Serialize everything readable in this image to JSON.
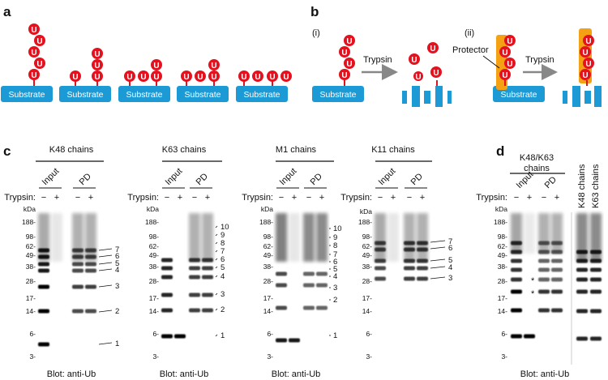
{
  "panel_labels": {
    "a": "a",
    "b": "b",
    "c": "c",
    "d": "d"
  },
  "ub_label": "U",
  "substrate_label": "Substrate",
  "panel_b": {
    "sub_i": "(i)",
    "sub_ii": "(ii)",
    "trypsin_label": "Trypsin",
    "protector_label": "Protector"
  },
  "colors": {
    "ubiquitin": "#e3121e",
    "substrate": "#1c9ad6",
    "protector": "#f5a114",
    "arrow": "#888888",
    "band": "#000000"
  },
  "blots": [
    {
      "title": "K48 chains",
      "trypsin_label": "Trypsin:",
      "input": "Input",
      "pd": "PD",
      "minus": "−",
      "plus": "+",
      "mw_unit": "kDa",
      "mw": [
        "188-",
        "98-",
        "62-",
        "49-",
        "38-",
        "28-",
        "17-",
        "14-",
        "6-",
        "3-"
      ],
      "chain_lengths": [
        "7",
        "6",
        "5",
        "4",
        "3",
        "2",
        "1"
      ],
      "footer": "Blot: anti-Ub"
    },
    {
      "title": "K63 chains",
      "trypsin_label": "Trypsin:",
      "input": "Input",
      "pd": "PD",
      "minus": "−",
      "plus": "+",
      "mw_unit": "kDa",
      "mw": [
        "188-",
        "98-",
        "62-",
        "49-",
        "38-",
        "28-",
        "17-",
        "14-",
        "6-",
        "3-"
      ],
      "chain_lengths": [
        "10",
        "9",
        "8",
        "7",
        "6",
        "5",
        "4",
        "3",
        "2",
        "1"
      ],
      "footer": "Blot: anti-Ub"
    },
    {
      "title": "M1 chains",
      "trypsin_label": "Trypsin:",
      "input": "Input",
      "pd": "PD",
      "minus": "−",
      "plus": "+",
      "mw_unit": "kDa",
      "mw": [
        "188-",
        "98-",
        "62-",
        "49-",
        "38-",
        "28-",
        "17-",
        "14-",
        "6-",
        "3-"
      ],
      "chain_lengths": [
        "10",
        "9",
        "8",
        "7",
        "6",
        "5",
        "4",
        "3",
        "2",
        "1"
      ],
      "footer": "Blot: anti-Ub"
    },
    {
      "title": "K11 chains",
      "trypsin_label": "Trypsin:",
      "input": "Input",
      "pd": "PD",
      "minus": "−",
      "plus": "+",
      "mw_unit": "kDa",
      "mw": [
        "188-",
        "98-",
        "62-",
        "49-",
        "38-",
        "28-",
        "17-",
        "14-",
        "6-",
        "3-"
      ],
      "chain_lengths": [
        "7",
        "6",
        "5",
        "4",
        "3"
      ]
    }
  ],
  "blot_d": {
    "title_line1": "K48/K63",
    "title_line2": "chains",
    "trypsin_label": "Trypsin:",
    "input": "Input",
    "pd": "PD",
    "minus": "−",
    "plus": "+",
    "mw_unit": "kDa",
    "mw": [
      "188-",
      "98-",
      "62-",
      "49-",
      "38-",
      "28-",
      "17-",
      "14-",
      "6-",
      "3-"
    ],
    "star": "*",
    "lane_k48": "K48 chains",
    "lane_k63": "K63 chains",
    "footer": "Blot: anti-Ub"
  }
}
